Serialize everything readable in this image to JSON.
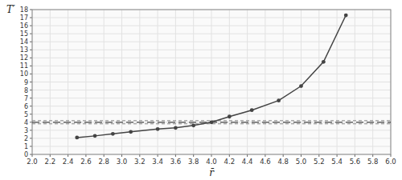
{
  "chart_data": {
    "type": "line",
    "xlabel": "r̄",
    "ylabel": "T′",
    "x": [
      2.5,
      2.7,
      2.9,
      3.1,
      3.4,
      3.6,
      3.8,
      4.0,
      4.2,
      4.45,
      4.75,
      5.0,
      5.25,
      5.5
    ],
    "series": [
      {
        "color": "#444444",
        "marker": "circle",
        "line_style": "solid",
        "values": [
          2.1,
          2.3,
          2.55,
          2.8,
          3.15,
          3.3,
          3.6,
          4.0,
          4.7,
          5.5,
          6.7,
          8.5,
          11.5,
          17.3
        ]
      }
    ],
    "hlines": [
      {
        "value": 4,
        "color": "#444444",
        "line_style": "long-dash"
      },
      {
        "value": 4.2,
        "color": "#888888",
        "line_style": "short-dash"
      },
      {
        "value": 3.8,
        "color": "#888888",
        "line_style": "short-dash"
      }
    ],
    "xlim": [
      2.0,
      6.0
    ],
    "ylim": [
      0,
      18
    ],
    "xticks": [
      {
        "value": 2.0,
        "label": "2.0"
      },
      2.2,
      2.4,
      2.6,
      2.8,
      {
        "value": 3.0,
        "label": "3.0"
      },
      3.2,
      3.4,
      3.6,
      3.8,
      {
        "value": 4.0,
        "label": "4.0"
      },
      4.2,
      4.4,
      4.6,
      4.8,
      {
        "value": 5.0,
        "label": "5.0"
      },
      5.2,
      5.4,
      5.6,
      5.8,
      {
        "value": 6.0,
        "label": "6.0"
      }
    ],
    "yticks": [
      0,
      1,
      2,
      3,
      4,
      5,
      6,
      7,
      8,
      9,
      10,
      11,
      12,
      13,
      14,
      15,
      16,
      17,
      18
    ],
    "grid": true
  }
}
